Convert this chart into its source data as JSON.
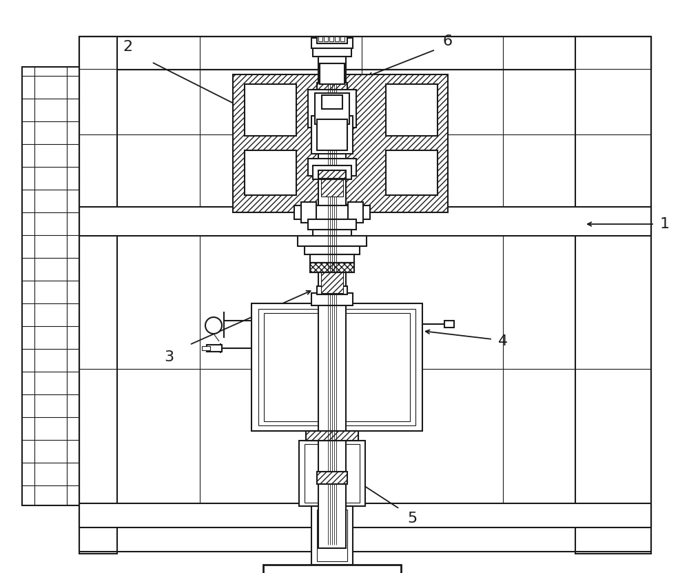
{
  "bg_color": "#ffffff",
  "lc": "#1a1a1a",
  "lw": 1.5,
  "lwt": 0.8,
  "lwk": 2.0
}
